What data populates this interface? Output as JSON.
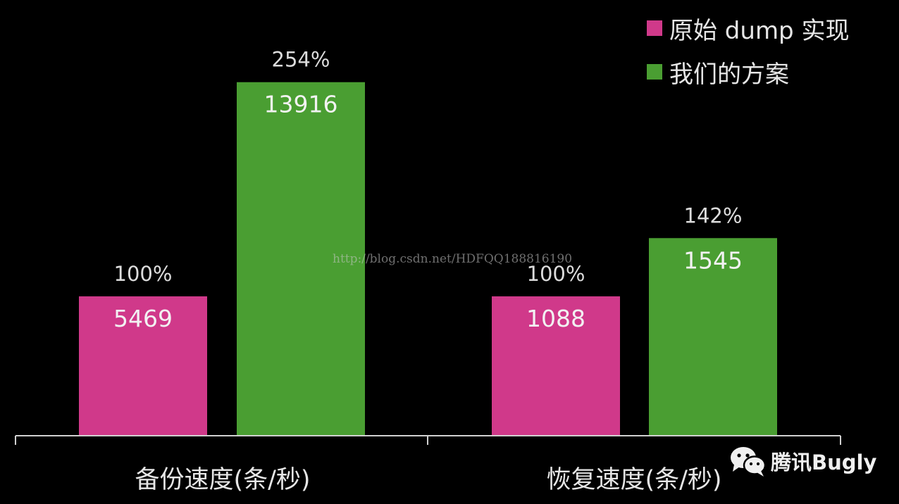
{
  "chart_data": {
    "type": "bar",
    "categories": [
      "备份速度(条/秒)",
      "恢复速度(条/秒)"
    ],
    "series": [
      {
        "name": "原始 dump 实现",
        "color": "#d0398a",
        "values": [
          5469,
          1088
        ],
        "percent_labels": [
          "100%",
          "100%"
        ]
      },
      {
        "name": "我们的方案",
        "color": "#4a9e32",
        "values": [
          13916,
          1545
        ],
        "percent_labels": [
          "254%",
          "142%"
        ]
      }
    ],
    "data_labels": [
      [
        "5469",
        "1088"
      ],
      [
        "13916",
        "1545"
      ]
    ],
    "legend_position": "top-right",
    "grid": false
  },
  "watermark": {
    "url": "http://blog.csdn.net/HDFQQ188816190",
    "brand": "腾讯Bugly",
    "brand_icon": "wechat-icon"
  }
}
